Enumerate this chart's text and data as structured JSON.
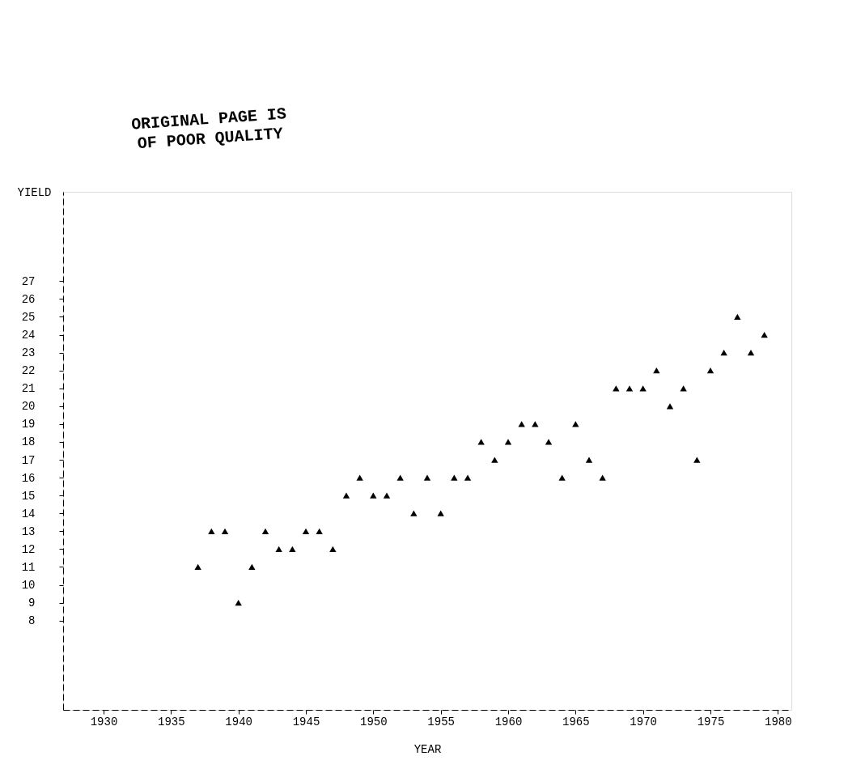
{
  "chart_data": {
    "type": "scatter",
    "xlabel": "YEAR",
    "ylabel": "YIELD",
    "annotations": [
      "ORIGINAL PAGE IS\nOF POOR QUALITY"
    ],
    "x": [
      1937,
      1938,
      1939,
      1940,
      1941,
      1942,
      1943,
      1944,
      1945,
      1946,
      1947,
      1948,
      1949,
      1950,
      1951,
      1952,
      1953,
      1954,
      1955,
      1956,
      1957,
      1958,
      1959,
      1960,
      1961,
      1962,
      1963,
      1964,
      1965,
      1966,
      1967,
      1968,
      1969,
      1970,
      1971,
      1972,
      1973,
      1974,
      1975,
      1976,
      1977,
      1978,
      1979
    ],
    "series": [
      {
        "color": "#000000",
        "values": [
          11,
          13,
          13,
          9,
          11,
          13,
          12,
          12,
          13,
          13,
          12,
          15,
          16,
          15,
          15,
          16,
          14,
          16,
          14,
          16,
          16,
          18,
          17,
          18,
          19,
          19,
          18,
          16,
          19,
          17,
          16,
          21,
          21,
          21,
          22,
          20,
          21,
          17,
          22,
          23,
          25,
          23,
          24
        ]
      }
    ],
    "xlim": [
      1927,
      1981
    ],
    "xticks": [
      1930,
      1935,
      1940,
      1945,
      1950,
      1955,
      1960,
      1965,
      1970,
      1975,
      1980
    ],
    "ylim": [
      3,
      32
    ],
    "yticks": [
      8,
      9,
      10,
      11,
      12,
      13,
      14,
      15,
      16,
      17,
      18,
      19,
      20,
      21,
      22,
      23,
      24,
      25,
      26,
      27
    ],
    "grid": false,
    "marker": "triangle"
  }
}
